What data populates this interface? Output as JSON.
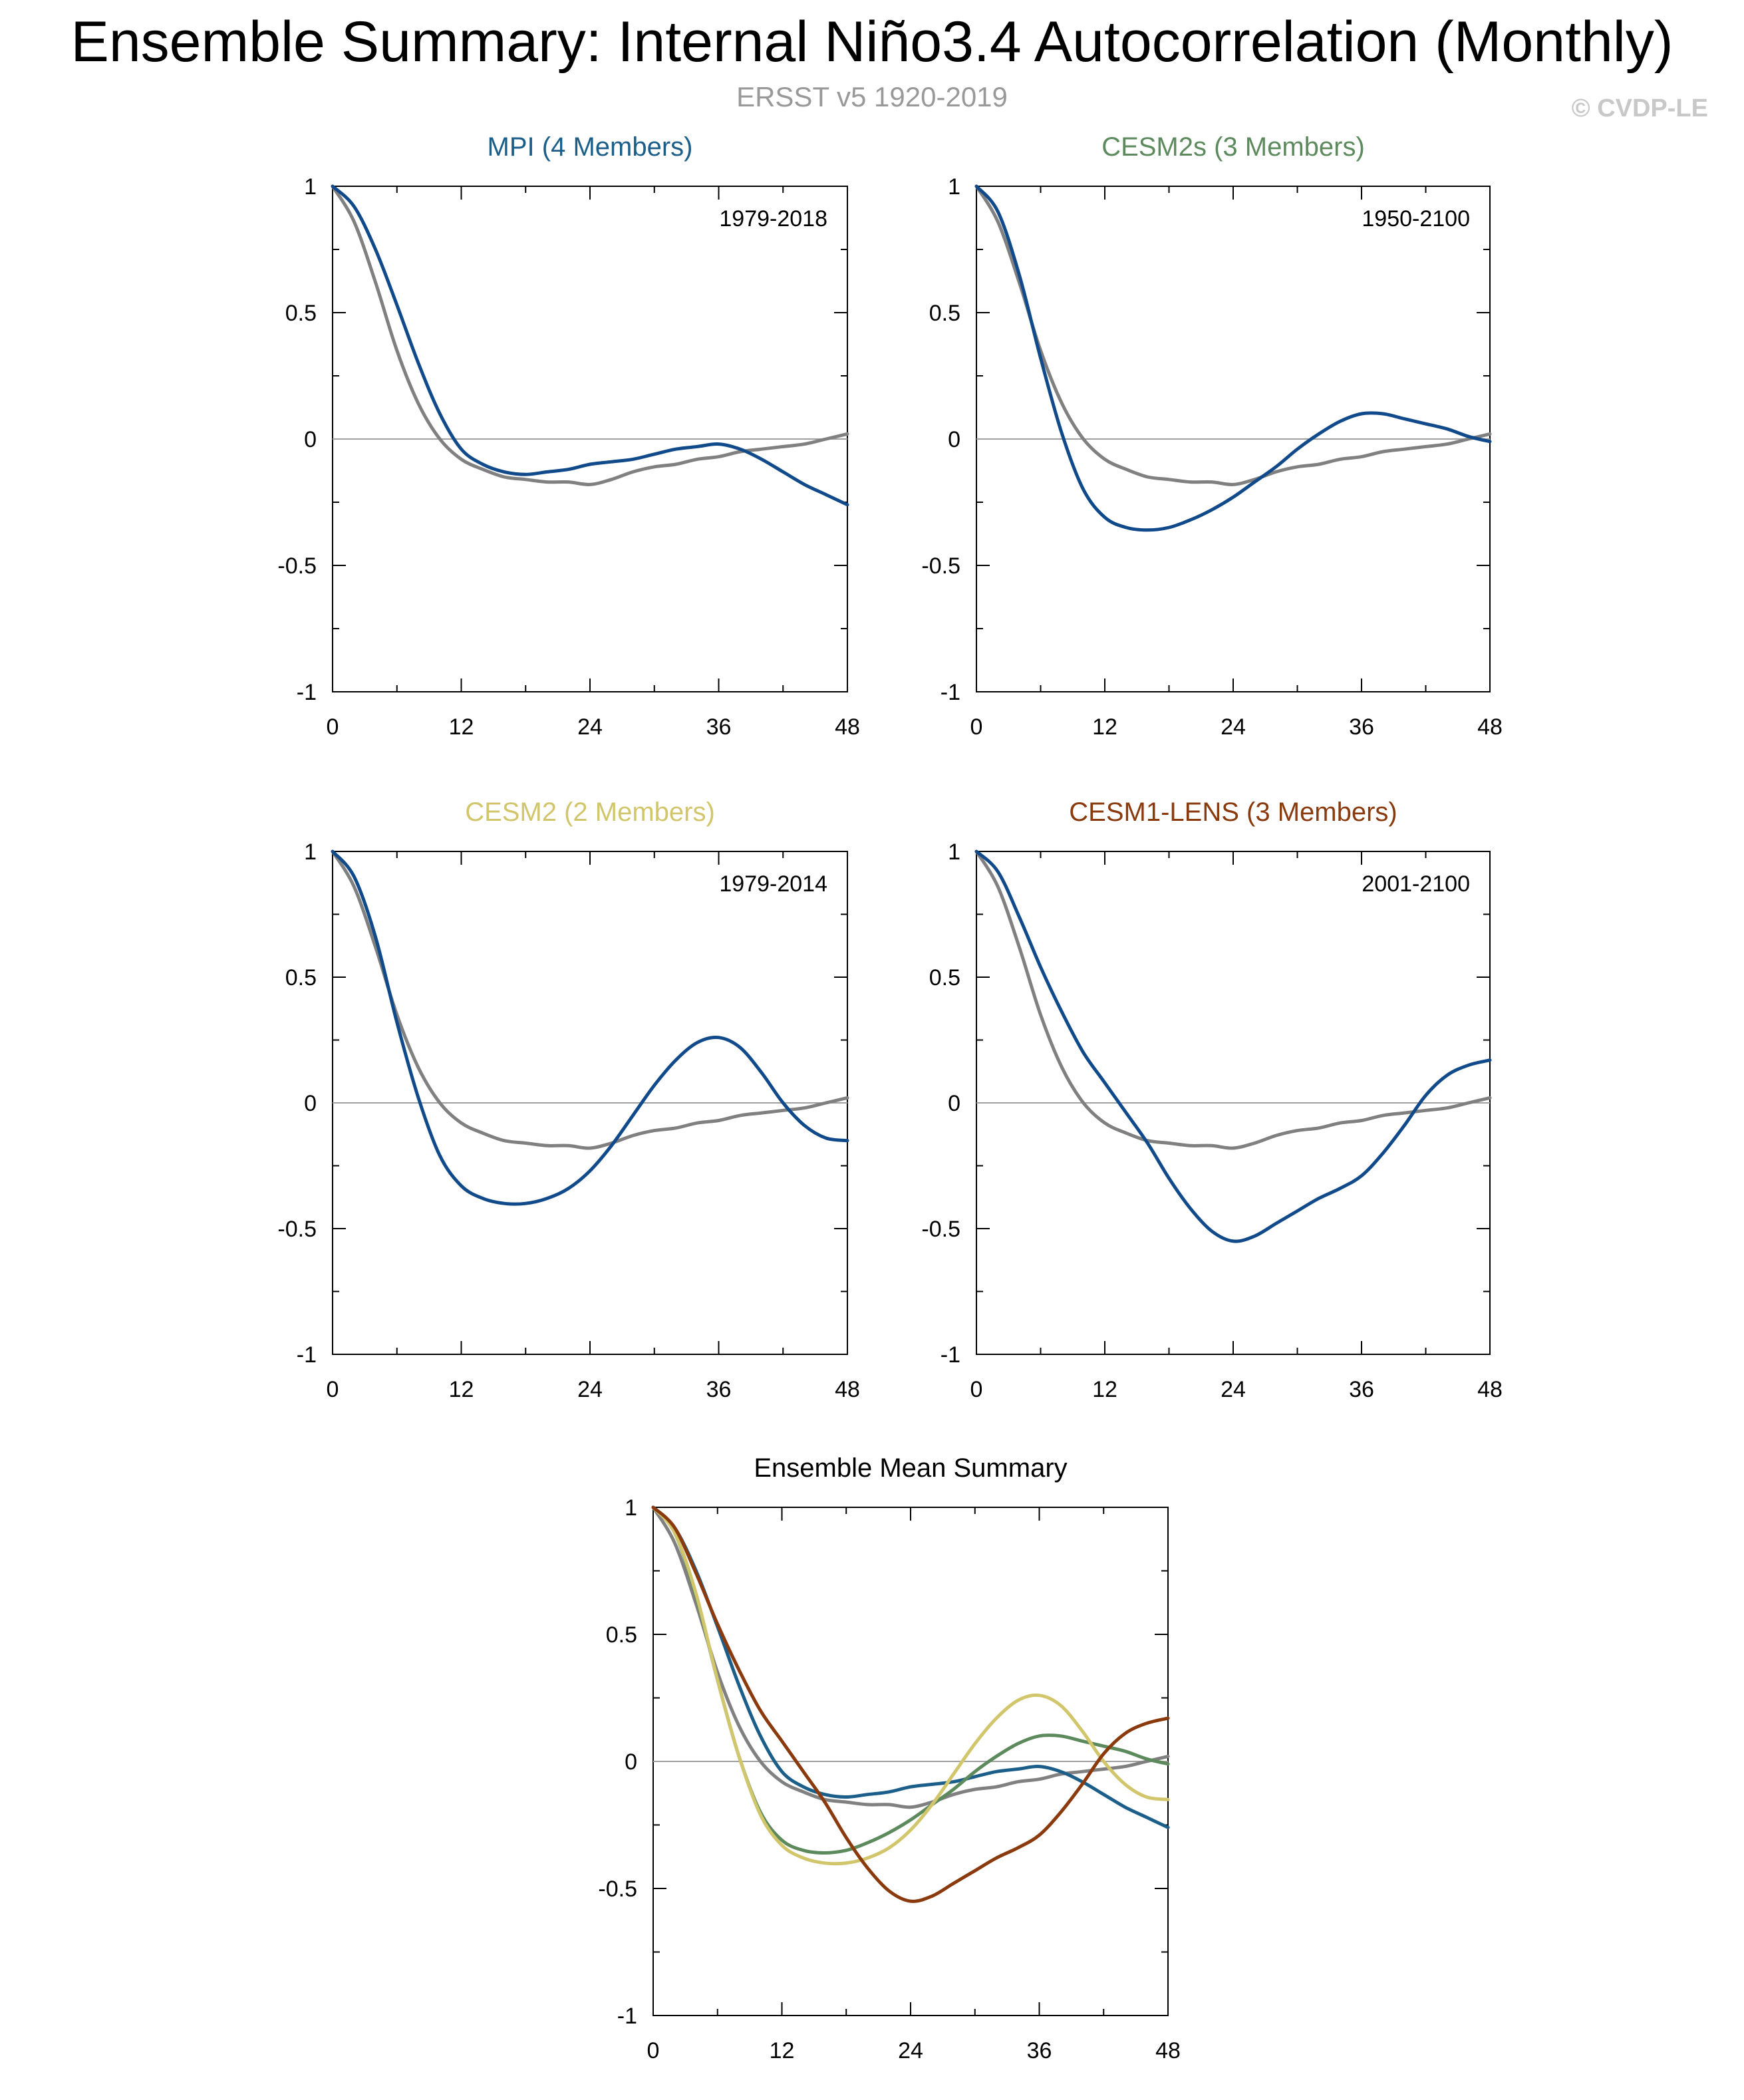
{
  "title": "Ensemble Summary: Internal Niño3.4 Autocorrelation (Monthly)",
  "subtitle": "ERSST v5 1920-2019",
  "copyright": "© CVDP-LE",
  "colors": {
    "obs": "#808080",
    "model_line": "#104a8a",
    "MPI": "#1b5e8a",
    "CESM2s": "#5c8a5c",
    "CESM2": "#d2c66c",
    "CESM1-LENS": "#8b3a0e"
  },
  "chart_data": [
    {
      "type": "line",
      "id": "mpi",
      "title": "MPI (4 Members)",
      "title_color": "#1b5e8a",
      "period": "1979-2018",
      "xticks": [
        "0",
        "12",
        "24",
        "36",
        "48"
      ],
      "yticks": [
        "1",
        "0.5",
        "0",
        "-0.5",
        "-1"
      ],
      "xlim": [
        0,
        48
      ],
      "ylim": [
        -1,
        1
      ],
      "zero_line": true,
      "series": [
        {
          "name": "ERSST v5",
          "color": "#808080",
          "x": [
            0,
            2,
            4,
            6,
            8,
            10,
            12,
            14,
            16,
            18,
            20,
            22,
            24,
            26,
            28,
            30,
            32,
            34,
            36,
            38,
            40,
            42,
            44,
            46,
            48
          ],
          "values": [
            1.0,
            0.86,
            0.62,
            0.35,
            0.14,
            0.0,
            -0.08,
            -0.12,
            -0.15,
            -0.16,
            -0.17,
            -0.17,
            -0.18,
            -0.16,
            -0.13,
            -0.11,
            -0.1,
            -0.08,
            -0.07,
            -0.05,
            -0.04,
            -0.03,
            -0.02,
            0.0,
            0.02
          ]
        },
        {
          "name": "MPI",
          "color": "#104a8a",
          "x": [
            0,
            2,
            4,
            6,
            8,
            10,
            12,
            14,
            16,
            18,
            20,
            22,
            24,
            26,
            28,
            30,
            32,
            34,
            36,
            38,
            40,
            42,
            44,
            46,
            48
          ],
          "values": [
            1.0,
            0.92,
            0.75,
            0.53,
            0.3,
            0.1,
            -0.04,
            -0.1,
            -0.13,
            -0.14,
            -0.13,
            -0.12,
            -0.1,
            -0.09,
            -0.08,
            -0.06,
            -0.04,
            -0.03,
            -0.02,
            -0.04,
            -0.08,
            -0.13,
            -0.18,
            -0.22,
            -0.26
          ]
        }
      ]
    },
    {
      "type": "line",
      "id": "cesm2s",
      "title": "CESM2s (3 Members)",
      "title_color": "#5c8a5c",
      "period": "1950-2100",
      "xticks": [
        "0",
        "12",
        "24",
        "36",
        "48"
      ],
      "yticks": [
        "1",
        "0.5",
        "0",
        "-0.5",
        "-1"
      ],
      "xlim": [
        0,
        48
      ],
      "ylim": [
        -1,
        1
      ],
      "zero_line": true,
      "series": [
        {
          "name": "ERSST v5",
          "color": "#808080",
          "x": [
            0,
            2,
            4,
            6,
            8,
            10,
            12,
            14,
            16,
            18,
            20,
            22,
            24,
            26,
            28,
            30,
            32,
            34,
            36,
            38,
            40,
            42,
            44,
            46,
            48
          ],
          "values": [
            1.0,
            0.86,
            0.62,
            0.35,
            0.14,
            0.0,
            -0.08,
            -0.12,
            -0.15,
            -0.16,
            -0.17,
            -0.17,
            -0.18,
            -0.16,
            -0.13,
            -0.11,
            -0.1,
            -0.08,
            -0.07,
            -0.05,
            -0.04,
            -0.03,
            -0.02,
            0.0,
            0.02
          ]
        },
        {
          "name": "CESM2s",
          "color": "#104a8a",
          "x": [
            0,
            2,
            4,
            6,
            8,
            10,
            12,
            14,
            16,
            18,
            20,
            22,
            24,
            26,
            28,
            30,
            32,
            34,
            36,
            38,
            40,
            42,
            44,
            46,
            48
          ],
          "values": [
            1.0,
            0.9,
            0.65,
            0.32,
            0.02,
            -0.2,
            -0.31,
            -0.35,
            -0.36,
            -0.35,
            -0.32,
            -0.28,
            -0.23,
            -0.17,
            -0.11,
            -0.04,
            0.02,
            0.07,
            0.1,
            0.1,
            0.08,
            0.06,
            0.04,
            0.01,
            -0.01
          ]
        }
      ]
    },
    {
      "type": "line",
      "id": "cesm2",
      "title": "CESM2 (2 Members)",
      "title_color": "#d2c66c",
      "period": "1979-2014",
      "xticks": [
        "0",
        "12",
        "24",
        "36",
        "48"
      ],
      "yticks": [
        "1",
        "0.5",
        "0",
        "-0.5",
        "-1"
      ],
      "xlim": [
        0,
        48
      ],
      "ylim": [
        -1,
        1
      ],
      "zero_line": true,
      "series": [
        {
          "name": "ERSST v5",
          "color": "#808080",
          "x": [
            0,
            2,
            4,
            6,
            8,
            10,
            12,
            14,
            16,
            18,
            20,
            22,
            24,
            26,
            28,
            30,
            32,
            34,
            36,
            38,
            40,
            42,
            44,
            46,
            48
          ],
          "values": [
            1.0,
            0.86,
            0.62,
            0.35,
            0.14,
            0.0,
            -0.08,
            -0.12,
            -0.15,
            -0.16,
            -0.17,
            -0.17,
            -0.18,
            -0.16,
            -0.13,
            -0.11,
            -0.1,
            -0.08,
            -0.07,
            -0.05,
            -0.04,
            -0.03,
            -0.02,
            0.0,
            0.02
          ]
        },
        {
          "name": "CESM2",
          "color": "#104a8a",
          "x": [
            0,
            2,
            4,
            6,
            8,
            10,
            12,
            14,
            16,
            18,
            20,
            22,
            24,
            26,
            28,
            30,
            32,
            34,
            36,
            38,
            40,
            42,
            44,
            46,
            48
          ],
          "values": [
            1.0,
            0.9,
            0.66,
            0.32,
            0.02,
            -0.21,
            -0.33,
            -0.38,
            -0.4,
            -0.4,
            -0.38,
            -0.34,
            -0.27,
            -0.17,
            -0.05,
            0.07,
            0.17,
            0.24,
            0.26,
            0.22,
            0.12,
            0.0,
            -0.09,
            -0.14,
            -0.15
          ]
        }
      ]
    },
    {
      "type": "line",
      "id": "cesm1-lens",
      "title": "CESM1-LENS (3 Members)",
      "title_color": "#8b3a0e",
      "period": "2001-2100",
      "xticks": [
        "0",
        "12",
        "24",
        "36",
        "48"
      ],
      "yticks": [
        "1",
        "0.5",
        "0",
        "-0.5",
        "-1"
      ],
      "xlim": [
        0,
        48
      ],
      "ylim": [
        -1,
        1
      ],
      "zero_line": true,
      "series": [
        {
          "name": "ERSST v5",
          "color": "#808080",
          "x": [
            0,
            2,
            4,
            6,
            8,
            10,
            12,
            14,
            16,
            18,
            20,
            22,
            24,
            26,
            28,
            30,
            32,
            34,
            36,
            38,
            40,
            42,
            44,
            46,
            48
          ],
          "values": [
            1.0,
            0.86,
            0.62,
            0.35,
            0.14,
            0.0,
            -0.08,
            -0.12,
            -0.15,
            -0.16,
            -0.17,
            -0.17,
            -0.18,
            -0.16,
            -0.13,
            -0.11,
            -0.1,
            -0.08,
            -0.07,
            -0.05,
            -0.04,
            -0.03,
            -0.02,
            0.0,
            0.02
          ]
        },
        {
          "name": "CESM1-LENS",
          "color": "#104a8a",
          "x": [
            0,
            2,
            4,
            6,
            8,
            10,
            12,
            14,
            16,
            18,
            20,
            22,
            24,
            26,
            28,
            30,
            32,
            34,
            36,
            38,
            40,
            42,
            44,
            46,
            48
          ],
          "values": [
            1.0,
            0.92,
            0.74,
            0.54,
            0.36,
            0.2,
            0.08,
            -0.04,
            -0.16,
            -0.3,
            -0.42,
            -0.51,
            -0.55,
            -0.53,
            -0.48,
            -0.43,
            -0.38,
            -0.34,
            -0.29,
            -0.2,
            -0.09,
            0.03,
            0.11,
            0.15,
            0.17
          ]
        }
      ]
    },
    {
      "type": "line",
      "id": "ensemble-mean",
      "title": "Ensemble Mean Summary",
      "title_color": "#000000",
      "period": "",
      "xticks": [
        "0",
        "12",
        "24",
        "36",
        "48"
      ],
      "yticks": [
        "1",
        "0.5",
        "0",
        "-0.5",
        "-1"
      ],
      "xlim": [
        0,
        48
      ],
      "ylim": [
        -1,
        1
      ],
      "zero_line": true,
      "series": [
        {
          "name": "ERSST v5",
          "color": "#808080",
          "x": [
            0,
            2,
            4,
            6,
            8,
            10,
            12,
            14,
            16,
            18,
            20,
            22,
            24,
            26,
            28,
            30,
            32,
            34,
            36,
            38,
            40,
            42,
            44,
            46,
            48
          ],
          "values": [
            1.0,
            0.86,
            0.62,
            0.35,
            0.14,
            0.0,
            -0.08,
            -0.12,
            -0.15,
            -0.16,
            -0.17,
            -0.17,
            -0.18,
            -0.16,
            -0.13,
            -0.11,
            -0.1,
            -0.08,
            -0.07,
            -0.05,
            -0.04,
            -0.03,
            -0.02,
            0.0,
            0.02
          ]
        },
        {
          "name": "MPI",
          "color": "#1b5e8a",
          "x": [
            0,
            2,
            4,
            6,
            8,
            10,
            12,
            14,
            16,
            18,
            20,
            22,
            24,
            26,
            28,
            30,
            32,
            34,
            36,
            38,
            40,
            42,
            44,
            46,
            48
          ],
          "values": [
            1.0,
            0.92,
            0.75,
            0.53,
            0.3,
            0.1,
            -0.04,
            -0.1,
            -0.13,
            -0.14,
            -0.13,
            -0.12,
            -0.1,
            -0.09,
            -0.08,
            -0.06,
            -0.04,
            -0.03,
            -0.02,
            -0.04,
            -0.08,
            -0.13,
            -0.18,
            -0.22,
            -0.26
          ]
        },
        {
          "name": "CESM2s",
          "color": "#5c8a5c",
          "x": [
            0,
            2,
            4,
            6,
            8,
            10,
            12,
            14,
            16,
            18,
            20,
            22,
            24,
            26,
            28,
            30,
            32,
            34,
            36,
            38,
            40,
            42,
            44,
            46,
            48
          ],
          "values": [
            1.0,
            0.9,
            0.65,
            0.32,
            0.02,
            -0.2,
            -0.31,
            -0.35,
            -0.36,
            -0.35,
            -0.32,
            -0.28,
            -0.23,
            -0.17,
            -0.11,
            -0.04,
            0.02,
            0.07,
            0.1,
            0.1,
            0.08,
            0.06,
            0.04,
            0.01,
            -0.01
          ]
        },
        {
          "name": "CESM2",
          "color": "#d2c66c",
          "x": [
            0,
            2,
            4,
            6,
            8,
            10,
            12,
            14,
            16,
            18,
            20,
            22,
            24,
            26,
            28,
            30,
            32,
            34,
            36,
            38,
            40,
            42,
            44,
            46,
            48
          ],
          "values": [
            1.0,
            0.9,
            0.66,
            0.32,
            0.02,
            -0.21,
            -0.33,
            -0.38,
            -0.4,
            -0.4,
            -0.38,
            -0.34,
            -0.27,
            -0.17,
            -0.05,
            0.07,
            0.17,
            0.24,
            0.26,
            0.22,
            0.12,
            0.0,
            -0.09,
            -0.14,
            -0.15
          ]
        },
        {
          "name": "CESM1-LENS",
          "color": "#8b3a0e",
          "x": [
            0,
            2,
            4,
            6,
            8,
            10,
            12,
            14,
            16,
            18,
            20,
            22,
            24,
            26,
            28,
            30,
            32,
            34,
            36,
            38,
            40,
            42,
            44,
            46,
            48
          ],
          "values": [
            1.0,
            0.92,
            0.74,
            0.54,
            0.36,
            0.2,
            0.08,
            -0.04,
            -0.16,
            -0.3,
            -0.42,
            -0.51,
            -0.55,
            -0.53,
            -0.48,
            -0.43,
            -0.38,
            -0.34,
            -0.29,
            -0.2,
            -0.09,
            0.03,
            0.11,
            0.15,
            0.17
          ]
        }
      ]
    }
  ]
}
